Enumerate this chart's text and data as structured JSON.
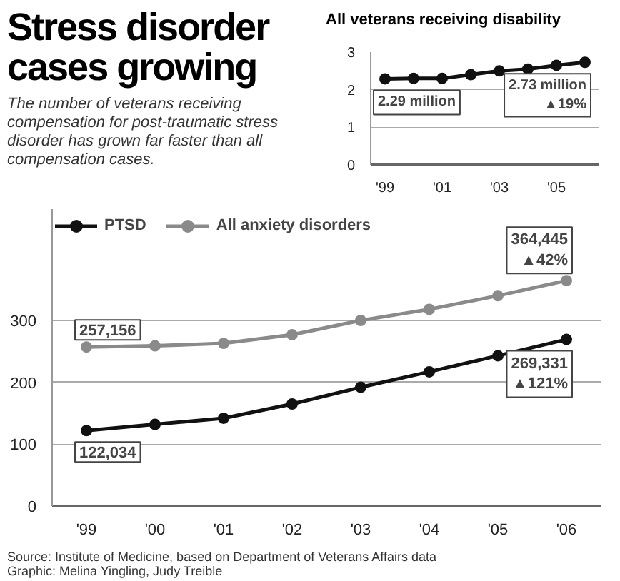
{
  "chart_data": [
    {
      "type": "line",
      "title": "Stress disorder cases growing",
      "subtitle": "The number of veterans receiving compensation for post-traumatic stress disorder has grown far faster than all compensation cases.",
      "categories": [
        "'99",
        "'00",
        "'01",
        "'02",
        "'03",
        "'04",
        "'05",
        "'06"
      ],
      "series": [
        {
          "name": "PTSD",
          "color": "#111111",
          "values": [
            122.034,
            132,
            142,
            165,
            192,
            217,
            243,
            269.331
          ]
        },
        {
          "name": "All anxiety disorders",
          "color": "#8a8a8a",
          "values": [
            257.156,
            259,
            263,
            277,
            300,
            318,
            340,
            364.445
          ]
        }
      ],
      "ylim": [
        0,
        480
      ],
      "yticks": [
        0,
        100,
        200,
        300
      ],
      "grid": "y",
      "legend": "top left",
      "marker": "circle",
      "annotations": [
        {
          "text": "257,156",
          "x": "'99",
          "y": 257.156
        },
        {
          "text": "364,445\n▲42%",
          "x": "'06",
          "y": 364.445
        },
        {
          "text": "122,034",
          "x": "'99",
          "y": 122.034
        },
        {
          "text": "269,331\n▲121%",
          "x": "'06",
          "y": 269.331
        },
        "Source: Institute of Medicine, based on Department of Veterans Affairs data",
        "Graphic: Melina Yingling, Judy Treible"
      ]
    },
    {
      "type": "line",
      "title": "All veterans receiving disability",
      "x": [
        1999,
        2000,
        2001,
        2002,
        2003,
        2004,
        2005,
        2006
      ],
      "values": [
        2.29,
        2.3,
        2.3,
        2.4,
        2.5,
        2.55,
        2.65,
        2.73
      ],
      "color": "#111111",
      "xlim": [
        1998.5,
        2006.5
      ],
      "xticks": [
        {
          "value": 1999,
          "label": "'99"
        },
        {
          "value": 2001,
          "label": "'01"
        },
        {
          "value": 2003,
          "label": "'03"
        },
        {
          "value": 2005,
          "label": "'05"
        }
      ],
      "ylim": [
        0,
        3
      ],
      "yticks": [
        0,
        1,
        2,
        3
      ],
      "grid": "y",
      "marker": "circle",
      "annotations": [
        {
          "text": "2.29 million",
          "x": 1999,
          "y": 2.29
        },
        {
          "text": "2.73 million\n▲19%",
          "x": 2006,
          "y": 2.73
        }
      ]
    }
  ]
}
